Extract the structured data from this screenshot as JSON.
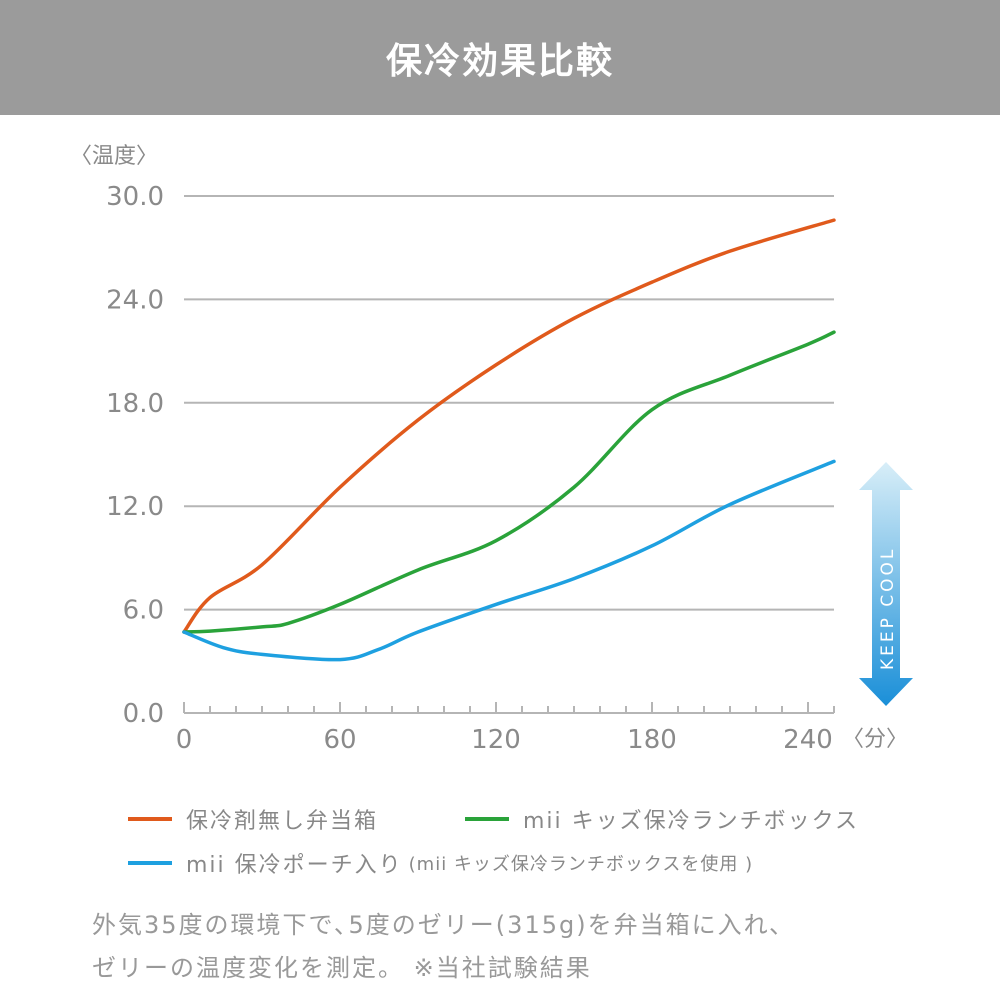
{
  "header": {
    "title": "保冷効果比較"
  },
  "chart_data": {
    "type": "line",
    "title": "保冷効果比較",
    "ylabel": "〈温度〉",
    "xlabel": "〈分〉",
    "ylim": [
      0,
      30
    ],
    "xlim": [
      0,
      250
    ],
    "yticks": [
      "0.0",
      "6.0",
      "12.0",
      "18.0",
      "24.0",
      "30.0"
    ],
    "xticks": [
      "0",
      "60",
      "120",
      "180",
      "240"
    ],
    "grid": true,
    "legend_position": "bottom",
    "series": [
      {
        "name": "保冷剤無し弁当箱",
        "color": "#e05a1c",
        "x": [
          0,
          10,
          30,
          60,
          90,
          120,
          150,
          180,
          210,
          250
        ],
        "y": [
          4.7,
          6.7,
          8.6,
          13.1,
          17.0,
          20.2,
          22.9,
          25.0,
          26.8,
          28.6
        ]
      },
      {
        "name": "mii キッズ保冷ランチボックス",
        "color": "#2aa33a",
        "x": [
          0,
          10,
          30,
          40,
          60,
          90,
          120,
          150,
          180,
          210,
          240,
          250
        ],
        "y": [
          4.7,
          4.75,
          5.0,
          5.2,
          6.3,
          8.3,
          10.0,
          13.1,
          17.6,
          19.6,
          21.4,
          22.1
        ]
      },
      {
        "name": "mii 保冷ポーチ入り",
        "color": "#1ea0e0",
        "x": [
          0,
          15,
          30,
          60,
          75,
          90,
          120,
          150,
          180,
          210,
          250
        ],
        "y": [
          4.7,
          3.8,
          3.4,
          3.1,
          3.7,
          4.7,
          6.3,
          7.8,
          9.7,
          12.1,
          14.6
        ]
      }
    ],
    "annotations": {
      "keep_cool": "KEEP COOL"
    }
  },
  "legend": {
    "third_suffix": "(mii キッズ保冷ランチボックスを使用 )"
  },
  "note": {
    "line1": "外気35度の環境下で､5度のゼリー(315g)を弁当箱に入れ､",
    "line2": "ゼリーの温度変化を測定。 ※当社試験結果"
  }
}
